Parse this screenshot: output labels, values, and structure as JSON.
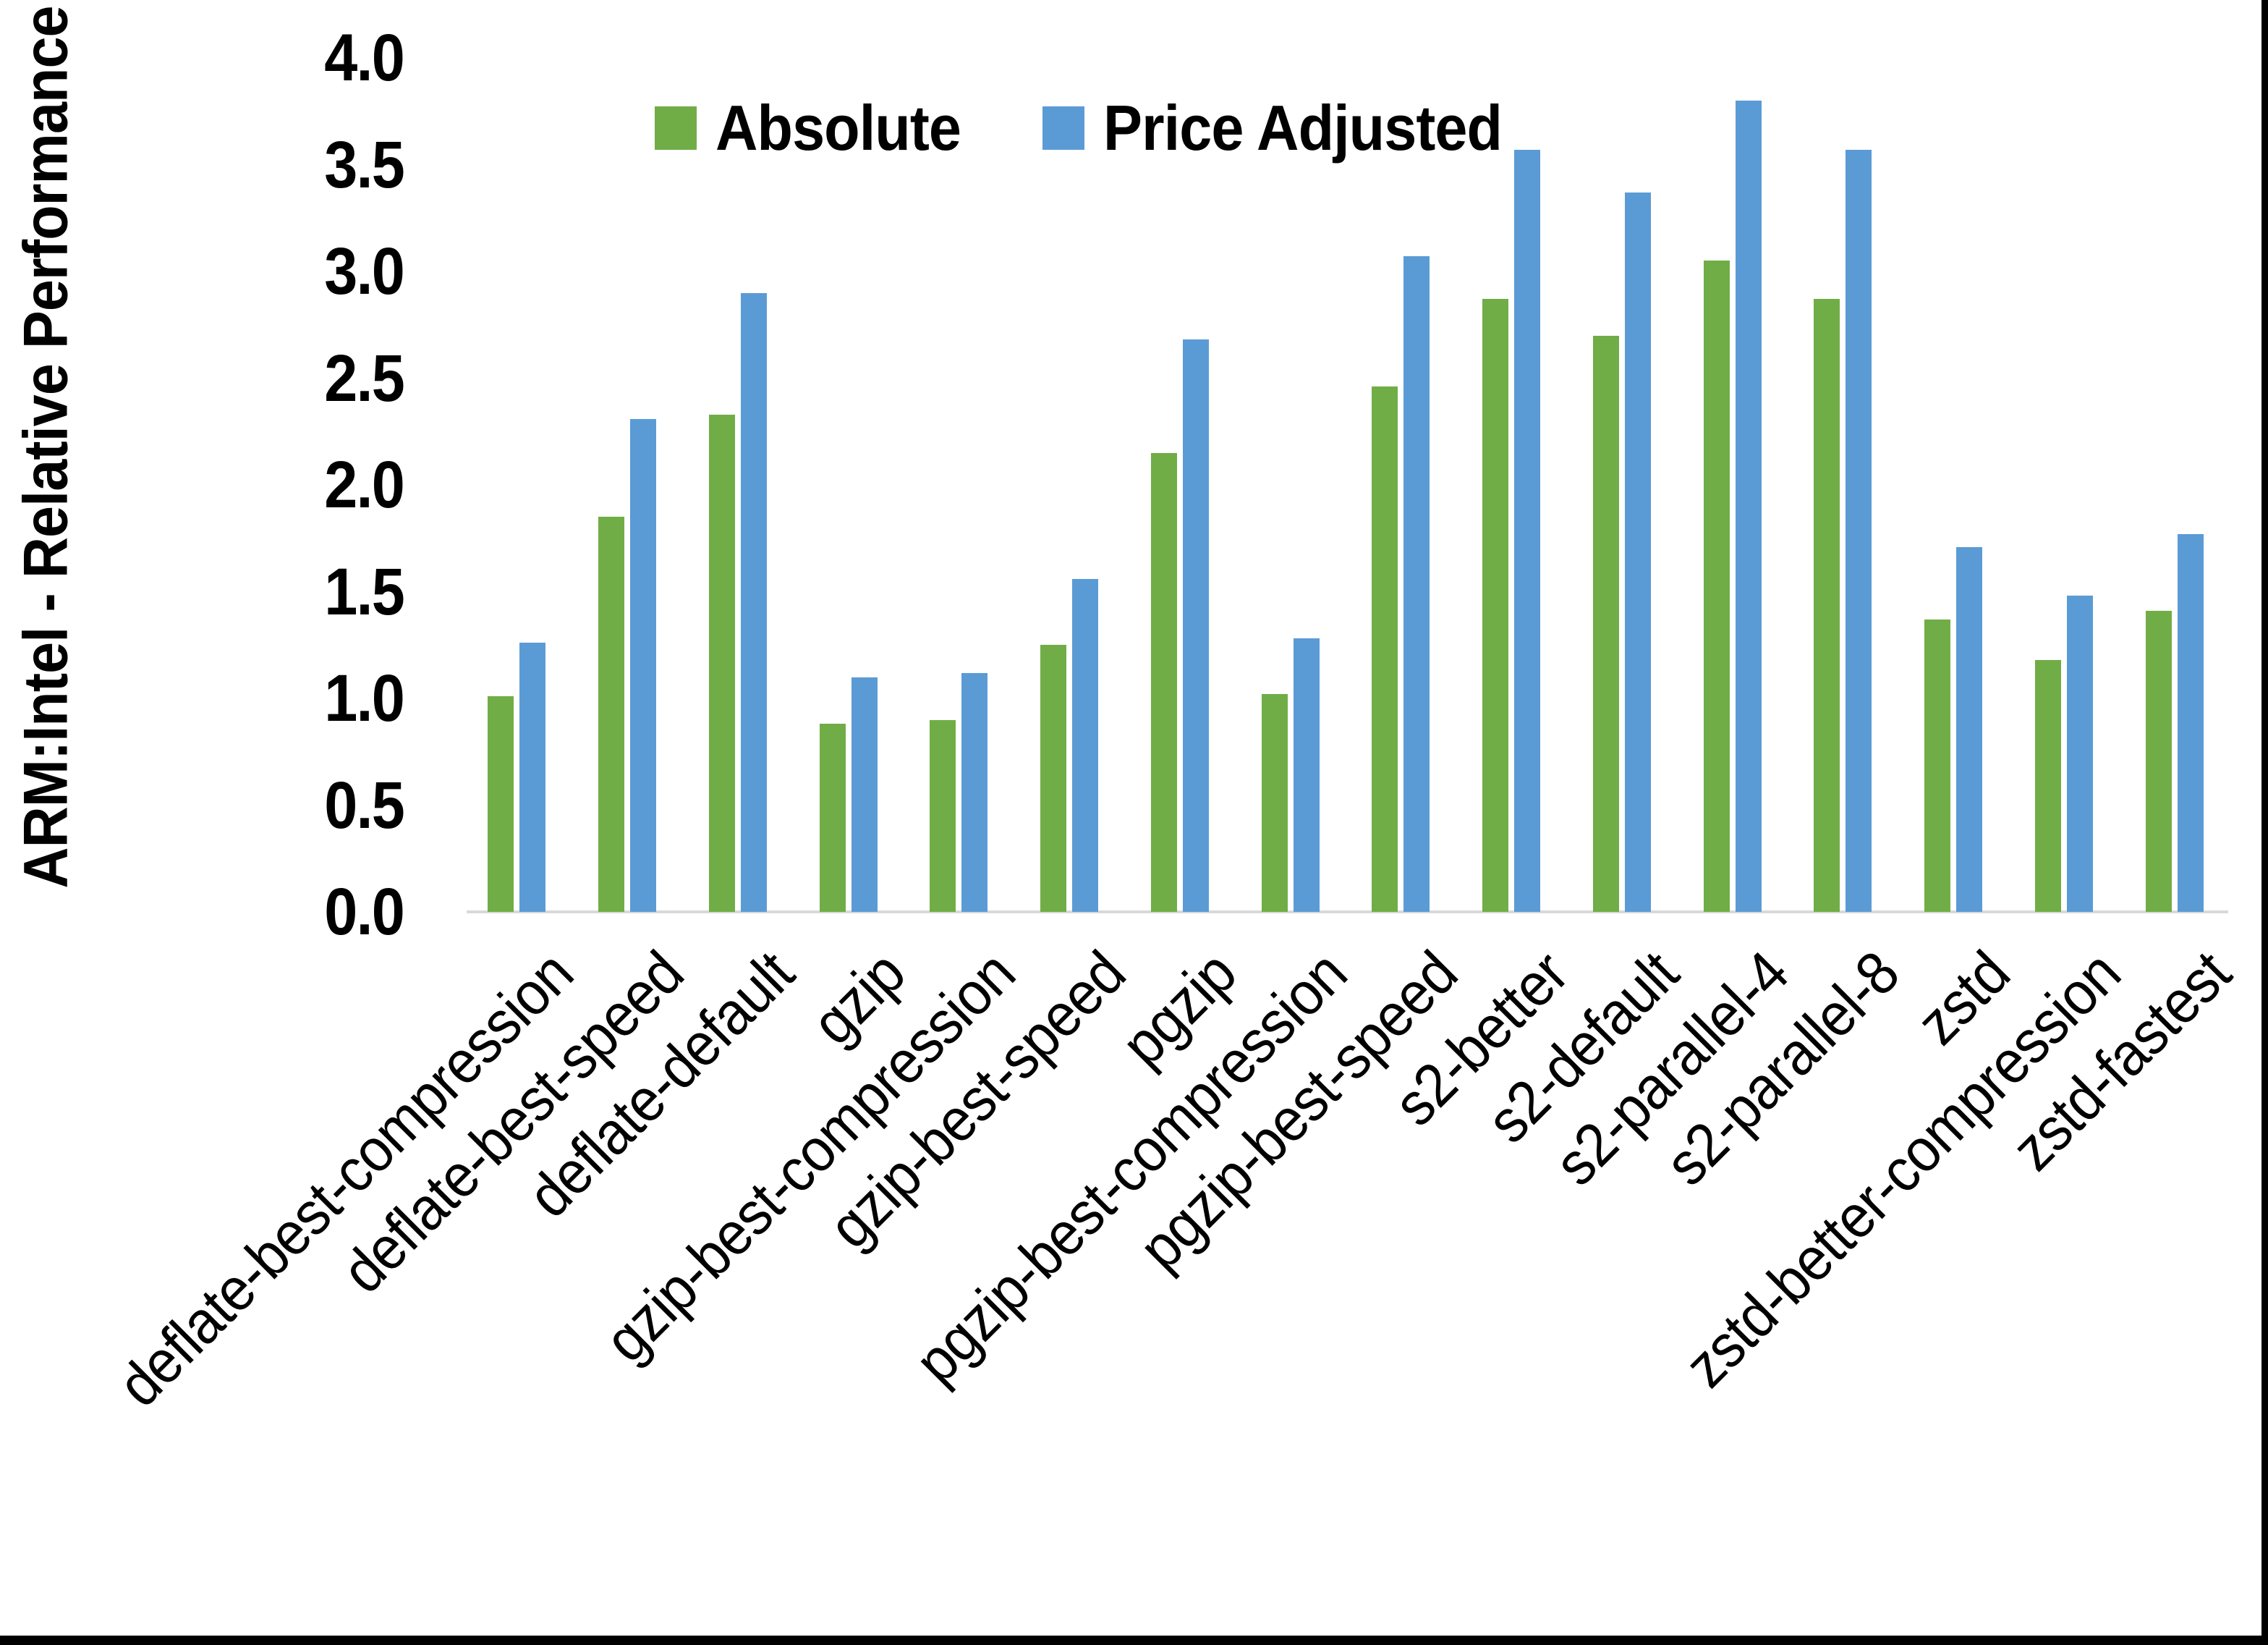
{
  "colors": {
    "absolute": "#70AD47",
    "price_adjusted": "#5B9BD5",
    "axis_line": "#D9D9D9",
    "frame_border": "#000000",
    "text": "#000000",
    "background": "#FFFFFF"
  },
  "legend": {
    "position": "top-center",
    "items": [
      {
        "label": "Absolute",
        "swatch": "green-square"
      },
      {
        "label": "Price Adjusted",
        "swatch": "blue-square"
      }
    ]
  },
  "chart_data": {
    "type": "bar",
    "title": "",
    "xlabel": "",
    "ylabel": "ARM:Intel - Relative Performance",
    "ylim": [
      0.0,
      4.0
    ],
    "ytick_step": 0.5,
    "yticks": [
      0.0,
      0.5,
      1.0,
      1.5,
      2.0,
      2.5,
      3.0,
      3.5,
      4.0
    ],
    "grid": false,
    "legend_position": "top",
    "x_tick_rotation_deg": 45,
    "categories": [
      "deflate-best-compression",
      "deflate-best-speed",
      "deflate-default",
      "gzip",
      "gzip-best-compression",
      "gzip-best-speed",
      "pgzip",
      "pgzip-best-compression",
      "pgzip-best-speed",
      "s2-better",
      "s2-default",
      "s2-parallel-4",
      "s2-parallel-8",
      "zstd",
      "zstd-better-compression",
      "zstd-fastest"
    ],
    "series": [
      {
        "name": "Absolute",
        "color": "#70AD47",
        "values": [
          1.01,
          1.85,
          2.33,
          0.88,
          0.9,
          1.25,
          2.15,
          1.02,
          2.46,
          2.87,
          2.7,
          3.05,
          2.87,
          1.37,
          1.18,
          1.41
        ]
      },
      {
        "name": "Price Adjusted",
        "color": "#5B9BD5",
        "values": [
          1.26,
          2.31,
          2.9,
          1.1,
          1.12,
          1.56,
          2.68,
          1.28,
          3.07,
          3.57,
          3.37,
          3.8,
          3.57,
          1.71,
          1.48,
          1.77
        ]
      }
    ]
  }
}
